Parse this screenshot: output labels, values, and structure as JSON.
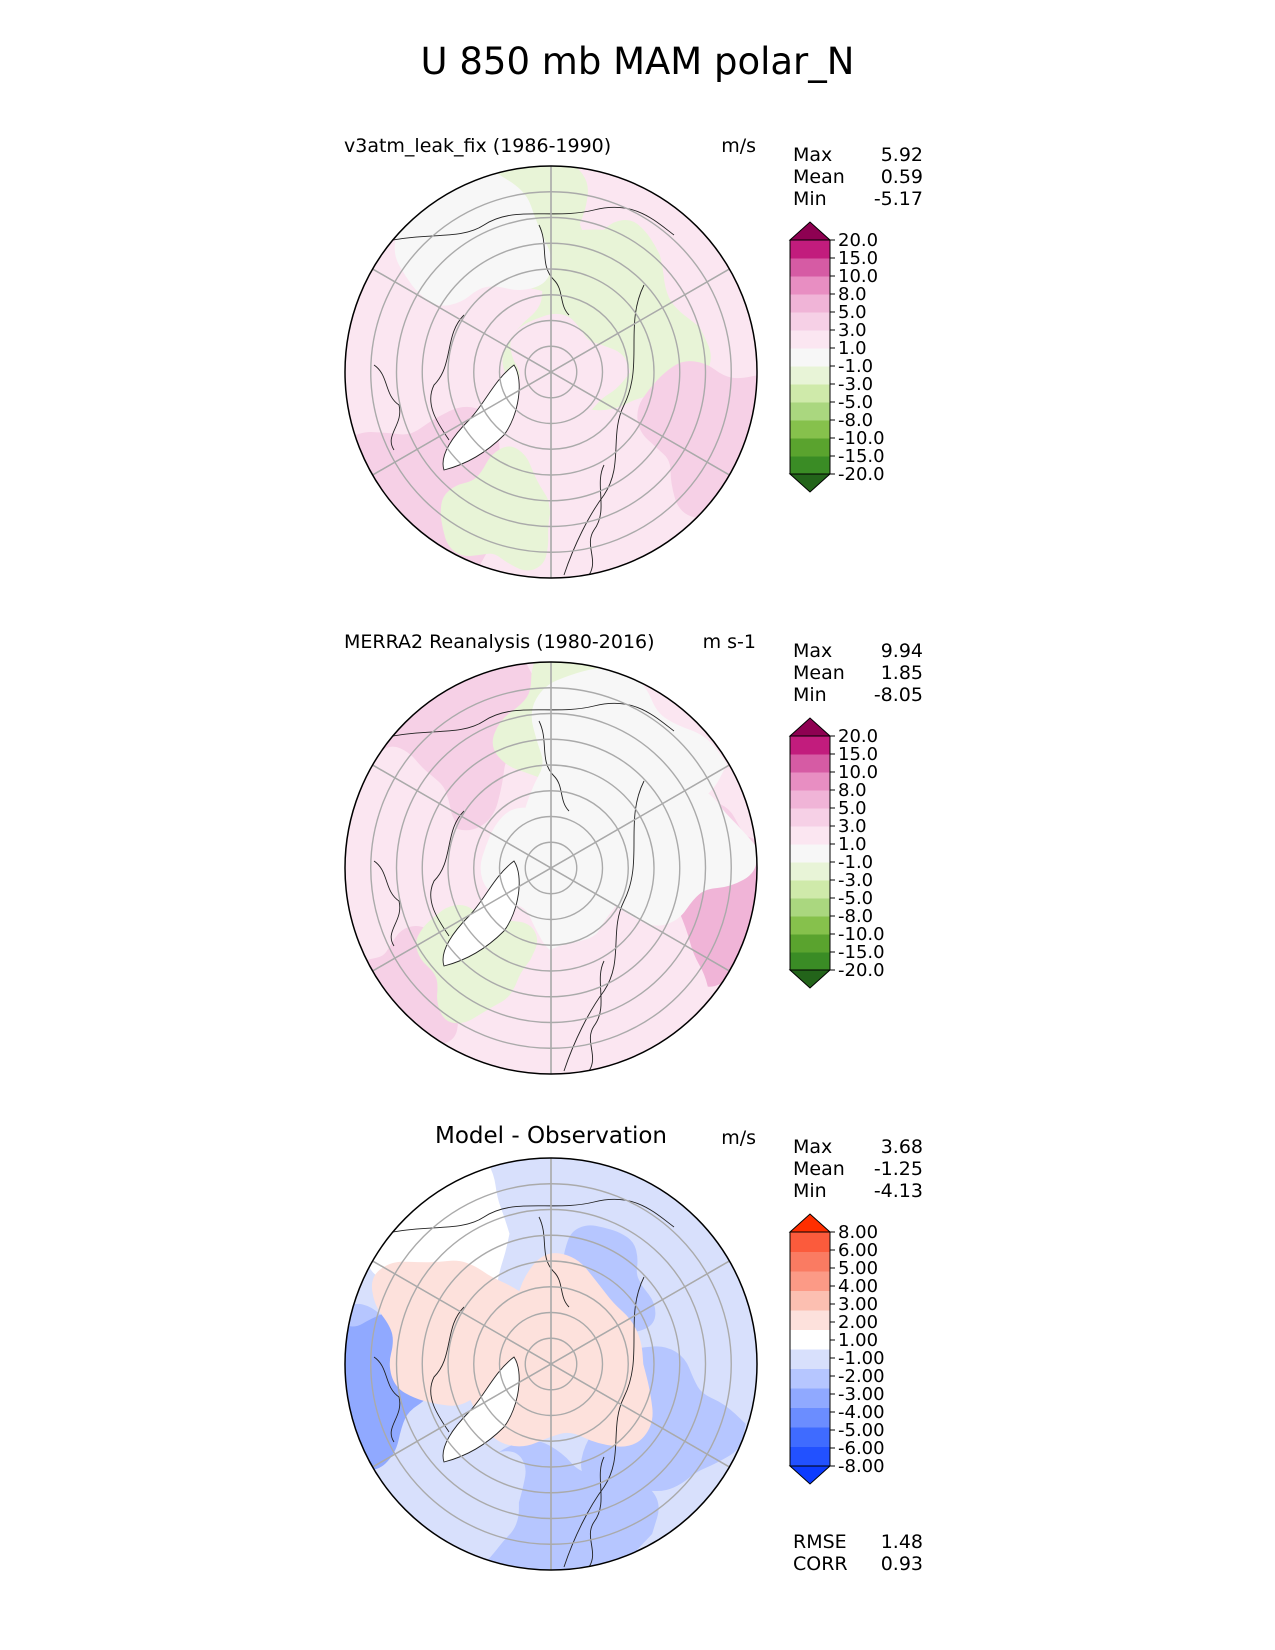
{
  "title": "U 850 mb MAM polar_N",
  "colors": {
    "test_cmap": [
      "#23641a",
      "#3a8c25",
      "#5aa32e",
      "#86c14c",
      "#aad77f",
      "#cfeaaa",
      "#e8f4d7",
      "#f7f7f7",
      "#fbe6f1",
      "#f6d0e6",
      "#f0b4d7",
      "#e88ec2",
      "#d65ba4",
      "#c21c7d",
      "#8e0152"
    ],
    "diff_cmap": [
      "#0c3bff",
      "#2251ff",
      "#3f6bff",
      "#6b8dff",
      "#90a9ff",
      "#b6c6ff",
      "#d8e0fc",
      "#ffffff",
      "#fde1dc",
      "#fcbfb1",
      "#fc9a86",
      "#fa7b62",
      "#fb5b3c",
      "#ff2e00"
    ]
  },
  "chart_data": [
    {
      "type": "heatmap",
      "projection": "north-polar-stereographic",
      "title": "v3atm_leak_fix (1986-1990)",
      "units": "m/s",
      "stats": {
        "Max": "5.92",
        "Mean": "0.59",
        "Min": "-5.17"
      },
      "colorbar_levels": [
        "20.0",
        "15.0",
        "10.0",
        "8.0",
        "5.0",
        "3.0",
        "1.0",
        "-1.0",
        "-3.0",
        "-5.0",
        "-8.0",
        "-10.0",
        "-15.0",
        "-20.0"
      ],
      "colormap": "test_cmap",
      "value_range": [
        -5.17,
        5.92
      ]
    },
    {
      "type": "heatmap",
      "projection": "north-polar-stereographic",
      "title": "MERRA2 Reanalysis (1980-2016)",
      "units": "m s-1",
      "stats": {
        "Max": "9.94",
        "Mean": "1.85",
        "Min": "-8.05"
      },
      "colorbar_levels": [
        "20.0",
        "15.0",
        "10.0",
        "8.0",
        "5.0",
        "3.0",
        "1.0",
        "-1.0",
        "-3.0",
        "-5.0",
        "-8.0",
        "-10.0",
        "-15.0",
        "-20.0"
      ],
      "colormap": "test_cmap",
      "value_range": [
        -8.05,
        9.94
      ]
    },
    {
      "type": "heatmap",
      "projection": "north-polar-stereographic",
      "title": "Model - Observation",
      "units": "m/s",
      "stats": {
        "Max": "3.68",
        "Mean": "-1.25",
        "Min": "-4.13"
      },
      "colorbar_levels": [
        "8.00",
        "6.00",
        "5.00",
        "4.00",
        "3.00",
        "2.00",
        "1.00",
        "-1.00",
        "-2.00",
        "-3.00",
        "-4.00",
        "-5.00",
        "-6.00",
        "-8.00"
      ],
      "colormap": "diff_cmap",
      "value_range": [
        -4.13,
        3.68
      ],
      "metrics": {
        "RMSE": "1.48",
        "CORR": "0.93"
      }
    }
  ]
}
